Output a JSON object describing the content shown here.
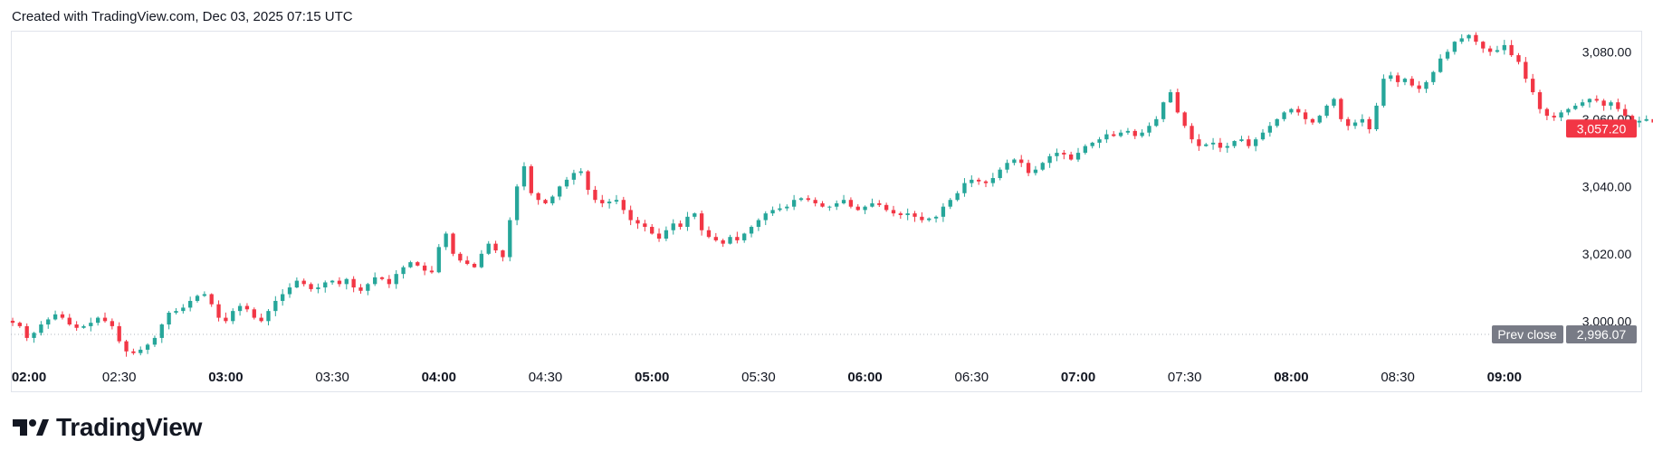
{
  "header": {
    "text": "Created with TradingView.com, Dec 03, 2025 07:15 UTC"
  },
  "brand": {
    "name": "TradingView"
  },
  "colors": {
    "up": "#26a69a",
    "down": "#f23645",
    "axis_text": "#131722",
    "prev_close_bg": "#787b86"
  },
  "chart_data": {
    "type": "candlestick",
    "time_axis": [
      "02:00",
      "02:30",
      "03:00",
      "03:30",
      "04:00",
      "04:30",
      "05:00",
      "05:30",
      "06:00",
      "06:30",
      "07:00",
      "07:30",
      "08:00",
      "08:30",
      "09:00"
    ],
    "bold_ticks": [
      "02:00",
      "03:00",
      "04:00",
      "05:00",
      "06:00",
      "07:00",
      "08:00",
      "09:00"
    ],
    "price_axis": [
      "3,080.00",
      "3,060.00",
      "3,040.00",
      "3,020.00",
      "3,000.00"
    ],
    "ylim": [
      2988,
      3086
    ],
    "last_price": {
      "label": "3,057.20",
      "value": 3057.2
    },
    "prev_close": {
      "label": "Prev close",
      "value_label": "2,996.07",
      "value": 2996.07
    },
    "interval_minutes": 2,
    "start_time": "02:00",
    "closes": [
      2999.5,
      2998.5,
      2995.0,
      2996.5,
      2999.0,
      3000.5,
      3002.0,
      3001.0,
      2999.0,
      2998.0,
      2998.5,
      2999.5,
      3001.0,
      3000.0,
      2998.5,
      2994.0,
      2991.0,
      2990.5,
      2991.5,
      2993.0,
      2995.0,
      2999.0,
      3002.5,
      3003.0,
      3004.0,
      3006.0,
      3007.5,
      3008.0,
      3005.0,
      3001.0,
      3000.0,
      3003.0,
      3004.5,
      3003.5,
      3001.0,
      3000.0,
      3003.0,
      3006.0,
      3008.0,
      3010.0,
      3012.0,
      3011.0,
      3009.5,
      3010.0,
      3011.5,
      3012.0,
      3011.0,
      3012.5,
      3010.0,
      3009.0,
      3011.0,
      3013.0,
      3012.5,
      3011.0,
      3014.0,
      3016.0,
      3017.5,
      3016.5,
      3015.0,
      3014.5,
      3022.0,
      3026.0,
      3020.0,
      3018.0,
      3017.0,
      3016.0,
      3020.0,
      3023.0,
      3021.0,
      3019.0,
      3030.0,
      3040.0,
      3046.0,
      3038.0,
      3036.0,
      3035.0,
      3037.0,
      3040.0,
      3042.0,
      3044.0,
      3044.5,
      3039.0,
      3036.0,
      3035.0,
      3035.5,
      3036.0,
      3033.0,
      3030.0,
      3029.0,
      3028.0,
      3026.0,
      3024.5,
      3027.0,
      3029.0,
      3028.0,
      3031.0,
      3032.0,
      3027.0,
      3025.0,
      3024.0,
      3023.0,
      3025.0,
      3024.0,
      3026.0,
      3028.0,
      3030.0,
      3032.0,
      3033.0,
      3033.5,
      3034.0,
      3036.0,
      3036.5,
      3036.0,
      3035.0,
      3034.0,
      3034.0,
      3035.0,
      3036.0,
      3034.0,
      3033.0,
      3034.0,
      3035.0,
      3034.5,
      3033.0,
      3032.0,
      3031.5,
      3032.0,
      3031.0,
      3030.0,
      3030.5,
      3031.0,
      3034.0,
      3036.0,
      3038.0,
      3041.0,
      3042.0,
      3041.5,
      3041.0,
      3042.5,
      3045.0,
      3047.0,
      3048.0,
      3047.0,
      3044.0,
      3045.0,
      3047.0,
      3049.0,
      3050.0,
      3049.5,
      3048.0,
      3050.0,
      3052.0,
      3053.0,
      3054.0,
      3055.5,
      3055.0,
      3056.0,
      3056.5,
      3055.0,
      3056.0,
      3058.0,
      3060.0,
      3065.0,
      3068.0,
      3062.0,
      3058.0,
      3054.0,
      3052.0,
      3052.5,
      3053.0,
      3051.5,
      3052.0,
      3053.5,
      3054.0,
      3052.0,
      3054.0,
      3056.0,
      3058.0,
      3060.0,
      3062.0,
      3063.0,
      3062.0,
      3060.0,
      3059.0,
      3061.0,
      3064.0,
      3066.0,
      3060.0,
      3058.0,
      3059.0,
      3060.0,
      3057.0,
      3064.0,
      3072.0,
      3073.0,
      3071.0,
      3072.0,
      3070.0,
      3069.0,
      3071.0,
      3074.0,
      3078.0,
      3080.0,
      3083.0,
      3084.0,
      3085.0,
      3083.0,
      3081.0,
      3080.0,
      3080.5,
      3082.0,
      3079.0,
      3077.0,
      3072.0,
      3068.0,
      3063.0,
      3061.0,
      3060.5,
      3062.0,
      3063.0,
      3064.0,
      3065.0,
      3066.0,
      3065.5,
      3064.0,
      3065.0,
      3063.0,
      3061.0,
      3059.0,
      3059.5,
      3060.0,
      3059.0,
      3058.0,
      3057.2
    ]
  }
}
